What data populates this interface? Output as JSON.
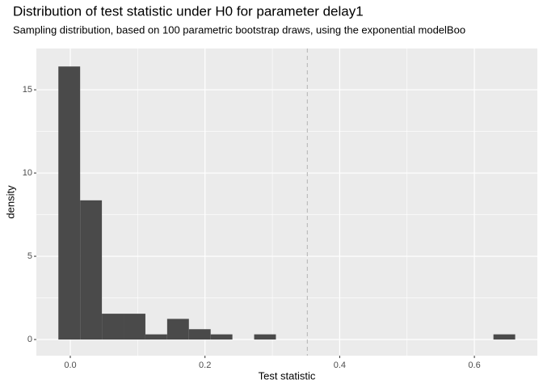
{
  "chart_data": {
    "type": "histogram",
    "title": "Distribution of test statistic under H0 for parameter delay1",
    "subtitle": "Sampling distribution, based on 100 parametric bootstrap draws, using the exponential modelBoo",
    "x_label": "Test statistic",
    "y_label": "density",
    "bins": [
      -0.0177,
      0.0146,
      0.0469,
      0.0792,
      0.1115,
      0.1438,
      0.1761,
      0.2084,
      0.2407,
      0.273,
      0.3053,
      0.3376,
      0.3699,
      0.4022,
      0.4345,
      0.4668,
      0.4991,
      0.5314,
      0.5637,
      0.596,
      0.6283,
      0.6606
    ],
    "values": [
      16.4,
      8.36,
      1.55,
      1.55,
      0.31,
      1.24,
      0.62,
      0.31,
      0,
      0.31,
      0,
      0,
      0,
      0,
      0,
      0,
      0,
      0,
      0,
      0,
      0.31
    ],
    "color": "#4a4a4a",
    "vline": 0.352,
    "vline_color": "#bdbdbd",
    "xlim": [
      -0.0504,
      0.6935
    ],
    "ylim": [
      -0.97,
      17.48
    ],
    "xticks": [
      {
        "value": 0,
        "label": "0.0"
      },
      0.2,
      0.4,
      0.6
    ],
    "yticks": [
      0,
      5,
      10,
      15
    ],
    "minor_xticks": [
      0.1,
      0.3,
      0.5
    ],
    "minor_yticks": [
      2.5,
      7.5,
      12.5
    ],
    "grid": true
  }
}
